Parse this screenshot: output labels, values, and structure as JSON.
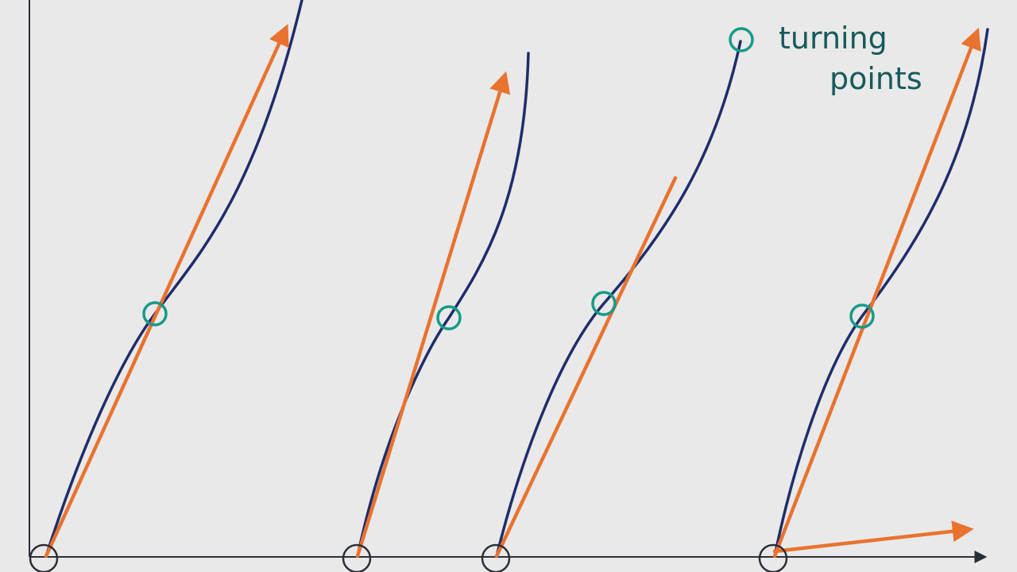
{
  "legend": {
    "label_lines": [
      "turning",
      "points"
    ]
  }
}
